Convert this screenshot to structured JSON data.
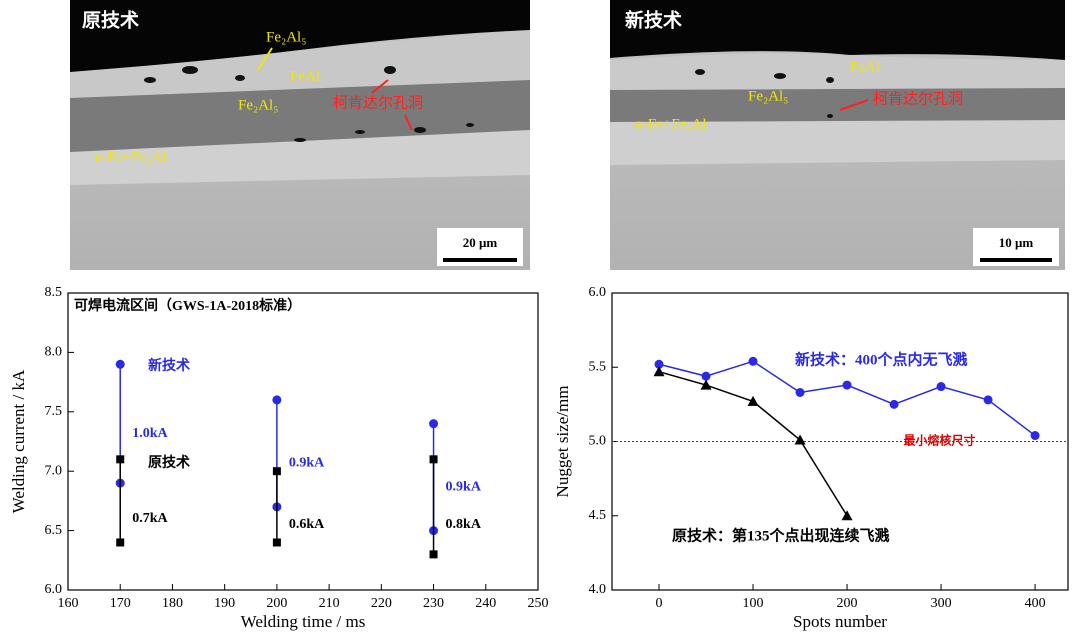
{
  "images": [
    {
      "title": "原技术",
      "labels": [
        "Fe₂Al₅",
        "FeAl",
        "Fe₂Al₅",
        "柯肯达尔孔洞",
        "α-Fe+Fe₃Al"
      ],
      "scale_bar": "20 μm"
    },
    {
      "title": "新技术",
      "labels": [
        "FeAl",
        "Fe₂Al₅",
        "柯肯达尔孔洞",
        "α-Fe+Fe₃Al"
      ],
      "scale_bar": "10 μm"
    }
  ],
  "chart_data": [
    {
      "type": "range",
      "title": "可焊电流区间（GWS-1A-2018标准）",
      "x_label": "Welding time / ms",
      "y_label": "Welding current / kA",
      "xlim": [
        160,
        250
      ],
      "xticks": [
        160,
        170,
        180,
        190,
        200,
        210,
        220,
        230,
        240,
        250
      ],
      "ylim": [
        6,
        8.5
      ],
      "yticks": [
        {
          "value": 6,
          "label": "6.0"
        },
        6.5,
        {
          "value": 7,
          "label": "7.0"
        },
        7.5,
        {
          "value": 8,
          "label": "8.0"
        },
        8.5
      ],
      "series": [
        {
          "name": "新技术",
          "color": "#2a2ae6",
          "marker": "circle",
          "x": [
            170,
            200,
            230
          ],
          "low": [
            6.9,
            6.7,
            6.5
          ],
          "high": [
            7.9,
            7.6,
            7.4
          ],
          "span_labels": [
            "1.0kA",
            "0.9kA",
            "0.9kA"
          ]
        },
        {
          "name": "原技术",
          "color": "#000000",
          "marker": "square",
          "x": [
            170,
            200,
            230
          ],
          "low": [
            6.4,
            6.4,
            6.3
          ],
          "high": [
            7.1,
            7.0,
            7.1
          ],
          "span_labels": [
            "0.7kA",
            "0.6kA",
            "0.8kA"
          ]
        }
      ]
    },
    {
      "type": "line",
      "x_label": "Spots number",
      "y_label": "Nugget size/mm",
      "xlim": [
        -50,
        435
      ],
      "xticks": [
        0,
        100,
        200,
        300,
        400
      ],
      "ylim": [
        4,
        6
      ],
      "yticks": [
        {
          "value": 4,
          "label": "4.0"
        },
        4.5,
        {
          "value": 5,
          "label": "5.0"
        },
        5.5,
        {
          "value": 6,
          "label": "6.0"
        }
      ],
      "reference_line": {
        "value": 5,
        "label": "最小熔核尺寸",
        "color": "#e00000"
      },
      "series": [
        {
          "name": "新技术：400个点内无飞溅",
          "color": "#2a2ae6",
          "marker": "circle",
          "x": [
            0,
            50,
            100,
            150,
            200,
            250,
            300,
            350,
            400
          ],
          "values": [
            5.52,
            5.44,
            5.54,
            5.33,
            5.38,
            5.25,
            5.37,
            5.28,
            5.04
          ]
        },
        {
          "name": "原技术：第135个点出现连续飞溅",
          "color": "#000000",
          "marker": "triangle",
          "x": [
            0,
            50,
            100,
            150,
            200
          ],
          "values": [
            5.47,
            5.38,
            5.27,
            5.01,
            4.5
          ]
        }
      ]
    }
  ]
}
